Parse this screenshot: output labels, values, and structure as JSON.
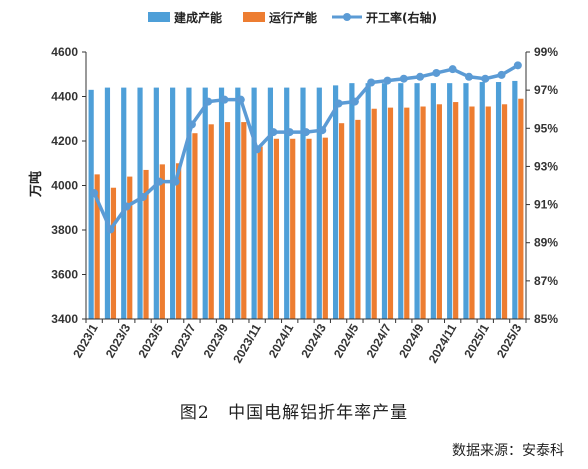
{
  "chart_data": {
    "type": "bar",
    "title": "",
    "ylabel": "万吨",
    "ylabel_right": "",
    "ylim": [
      3400,
      4600
    ],
    "yticks": [
      "3400",
      "3600",
      "3800",
      "4000",
      "4200",
      "4400",
      "4600"
    ],
    "ylim_right": [
      85,
      99
    ],
    "yticks_right": [
      "85%",
      "87%",
      "89%",
      "91%",
      "93%",
      "95%",
      "97%",
      "99%"
    ],
    "legend_position": "top",
    "grid": false,
    "categories": [
      "2023/1",
      "2023/2",
      "2023/3",
      "2023/4",
      "2023/5",
      "2023/6",
      "2023/7",
      "2023/8",
      "2023/9",
      "2023/10",
      "2023/11",
      "2023/12",
      "2024/1",
      "2024/2",
      "2024/3",
      "2024/4",
      "2024/5",
      "2024/6",
      "2024/7",
      "2024/8",
      "2024/9",
      "2024/10",
      "2024/11",
      "2024/12",
      "2025/1",
      "2025/2",
      "2025/3"
    ],
    "x_tick_labels": [
      "2023/1",
      "2023/3",
      "2023/5",
      "2023/7",
      "2023/9",
      "2023/11",
      "2024/1",
      "2024/3",
      "2024/5",
      "2024/7",
      "2024/9",
      "2024/11",
      "2025/1",
      "2025/3"
    ],
    "series": [
      {
        "name": "建成产能",
        "type": "bar",
        "axis": "left",
        "color": "#4E9FD8",
        "values": [
          4430,
          4440,
          4440,
          4440,
          4440,
          4440,
          4440,
          4440,
          4440,
          4440,
          4440,
          4440,
          4440,
          4440,
          4440,
          4450,
          4460,
          4460,
          4460,
          4460,
          4460,
          4460,
          4460,
          4460,
          4465,
          4465,
          4470
        ]
      },
      {
        "name": "运行产能",
        "type": "bar",
        "axis": "left",
        "color": "#ED7D31",
        "values": [
          4050,
          3990,
          4040,
          4070,
          4095,
          4100,
          4235,
          4275,
          4285,
          4285,
          4175,
          4210,
          4210,
          4210,
          4215,
          4280,
          4295,
          4345,
          4350,
          4350,
          4355,
          4365,
          4375,
          4355,
          4355,
          4365,
          4390
        ]
      },
      {
        "name": "开工率(右轴)",
        "type": "line",
        "axis": "right",
        "color": "#5B9BD5",
        "values": [
          91.6,
          89.7,
          90.9,
          91.4,
          92.2,
          92.2,
          95.2,
          96.4,
          96.5,
          96.5,
          93.9,
          94.8,
          94.8,
          94.8,
          94.9,
          96.3,
          96.4,
          97.4,
          97.5,
          97.6,
          97.7,
          97.9,
          98.1,
          97.7,
          97.6,
          97.8,
          98.3
        ]
      }
    ]
  },
  "caption": {
    "figure": "图2",
    "title": "中国电解铝折年率产量"
  },
  "source": "数据来源：安泰科"
}
